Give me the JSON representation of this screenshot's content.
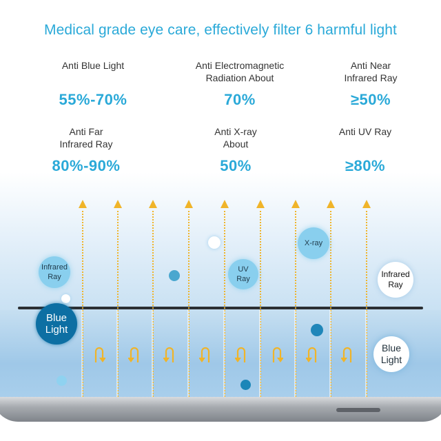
{
  "headline": "Medical grade eye care, effectively filter 6 harmful light",
  "stats": [
    {
      "label_lines": [
        "Anti Blue Light"
      ],
      "value": "55%-70%"
    },
    {
      "label_lines": [
        "Anti Electromagnetic",
        "Radiation About"
      ],
      "value": "70%"
    },
    {
      "label_lines": [
        "Anti Near",
        "Infrared Ray"
      ],
      "value": "≥50%"
    },
    {
      "label_lines": [
        "Anti Far",
        "Infrared Ray"
      ],
      "value": "80%-90%"
    },
    {
      "label_lines": [
        "Anti X-ray",
        "About"
      ],
      "value": "50%"
    },
    {
      "label_lines": [
        "Anti UV Ray"
      ],
      "value": "≥80%"
    }
  ],
  "bubbles": {
    "infrared_left": [
      "Infrared",
      "Ray"
    ],
    "uv": [
      "UV",
      "Ray"
    ],
    "xray": [
      "X-ray"
    ],
    "infrared_right": [
      "Infrared",
      "Ray"
    ],
    "blue_left": [
      "Blue",
      "Light"
    ],
    "blue_right": [
      "Blue",
      "Light"
    ]
  },
  "colors": {
    "accent": "#2aa9d8",
    "arrow": "#f0b429",
    "bubble_light": "#89cfee",
    "bubble_dark": "#0d6fa3"
  },
  "icons": {
    "ray_arrow": "up-arrow-icon",
    "bounce_arrow": "u-turn-arrow-icon"
  }
}
